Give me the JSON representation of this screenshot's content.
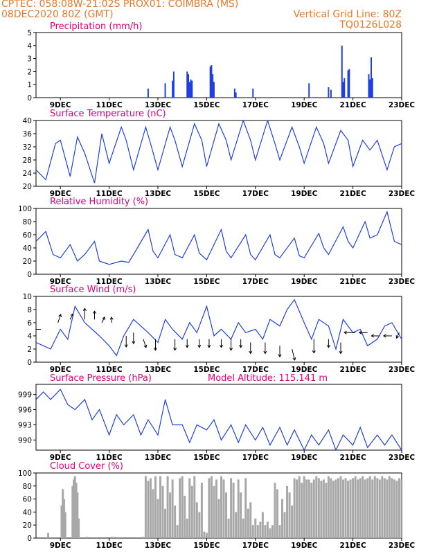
{
  "header": {
    "left_line1": "CPTEC:   058:08W-21:02S   PROX01: COIMBRA (MS)",
    "left_line2": "08DEC2020 80Z (GMT)",
    "right_line1": "Vertical Grid Line: 80Z",
    "right_line2": "TQ0126L028"
  },
  "colors": {
    "header": "#e8782a",
    "panel_title": "#e0007a",
    "series_line": "#1f3fe0",
    "cloud_bars": "#a8a8a8",
    "wind_arrows": "#000000"
  },
  "x_axis": {
    "unit": "day of month (Dec 2020)",
    "range": [
      8,
      23
    ],
    "ticks": [
      9,
      11,
      13,
      15,
      17,
      19,
      21,
      23
    ],
    "tick_labels": [
      "9DEC",
      "11DEC",
      "13DEC",
      "15DEC",
      "17DEC",
      "19DEC",
      "21DEC",
      "23DEC"
    ]
  },
  "chart_data": [
    {
      "type": "bar",
      "title": "Precipitation (mm/h)",
      "ylim": [
        0,
        5
      ],
      "yticks": [
        0,
        1,
        2,
        3,
        4,
        5
      ],
      "x": [
        12.6,
        13.3,
        13.6,
        13.65,
        14.2,
        14.25,
        14.3,
        14.35,
        14.4,
        15.15,
        15.2,
        15.25,
        15.3,
        16.15,
        16.2,
        16.9,
        19.2,
        20.0,
        20.1,
        20.55,
        20.6,
        20.65,
        20.8,
        20.85,
        21.65,
        21.7,
        21.75,
        21.8
      ],
      "values": [
        0.7,
        1.1,
        1.3,
        2.0,
        2.0,
        1.8,
        1.2,
        1.4,
        1.3,
        2.4,
        2.5,
        1.8,
        1.2,
        0.7,
        0.4,
        0.7,
        1.1,
        0.8,
        0.6,
        4.0,
        1.2,
        1.5,
        2.1,
        2.2,
        1.8,
        1.4,
        3.1,
        1.5
      ],
      "color": "#1f3fe0"
    },
    {
      "type": "line",
      "title": "Surface Temperature (nC)",
      "ylim": [
        20,
        40
      ],
      "yticks": [
        20,
        24,
        28,
        32,
        36,
        40
      ],
      "x": [
        8.0,
        8.4,
        8.8,
        9.0,
        9.4,
        9.7,
        10.0,
        10.4,
        10.7,
        11.0,
        11.5,
        11.7,
        12.0,
        12.5,
        12.7,
        13.0,
        13.5,
        13.7,
        14.0,
        14.5,
        14.8,
        15.0,
        15.5,
        15.8,
        16.0,
        16.5,
        16.8,
        17.0,
        17.5,
        17.8,
        18.0,
        18.5,
        18.8,
        19.0,
        19.5,
        19.8,
        20.0,
        20.5,
        20.8,
        21.0,
        21.4,
        21.7,
        22.0,
        22.4,
        22.7,
        23.0
      ],
      "y": [
        25,
        22,
        33,
        34,
        23,
        35,
        30,
        21,
        36,
        27,
        38,
        34,
        25,
        38,
        33,
        25,
        38,
        34,
        26,
        39,
        34,
        26,
        39,
        34,
        28,
        40,
        34,
        28,
        40,
        33,
        28,
        38,
        32,
        27,
        38,
        33,
        27,
        37,
        34,
        26,
        34,
        31,
        34,
        25,
        32,
        33
      ],
      "color": "#1f3fe0"
    },
    {
      "type": "line",
      "title": "Relative Humidity (%)",
      "ylim": [
        0,
        100
      ],
      "yticks": [
        0,
        20,
        40,
        60,
        80,
        100
      ],
      "x": [
        8.0,
        8.4,
        8.7,
        9.0,
        9.4,
        9.7,
        10.0,
        10.4,
        10.6,
        11.0,
        11.5,
        11.8,
        12.0,
        12.6,
        12.8,
        13.0,
        13.5,
        13.7,
        14.0,
        14.5,
        14.7,
        15.0,
        15.6,
        15.8,
        16.0,
        16.6,
        16.8,
        17.0,
        17.6,
        17.8,
        18.0,
        18.6,
        18.8,
        19.0,
        19.6,
        19.8,
        20.0,
        20.6,
        20.8,
        21.0,
        21.5,
        21.7,
        22.0,
        22.4,
        22.7,
        23.0
      ],
      "y": [
        50,
        65,
        30,
        25,
        45,
        20,
        30,
        50,
        20,
        15,
        20,
        18,
        30,
        68,
        35,
        25,
        60,
        30,
        25,
        60,
        32,
        22,
        68,
        35,
        25,
        60,
        30,
        22,
        60,
        30,
        25,
        55,
        28,
        25,
        62,
        40,
        30,
        72,
        50,
        40,
        80,
        55,
        60,
        95,
        50,
        45
      ],
      "color": "#1f3fe0"
    },
    {
      "type": "line",
      "title": "Surface Wind (m/s)",
      "ylim": [
        0,
        10
      ],
      "yticks": [
        0,
        2,
        4,
        6,
        8,
        10
      ],
      "x": [
        8.0,
        8.3,
        8.6,
        9.0,
        9.3,
        9.6,
        10.0,
        10.3,
        10.6,
        11.0,
        11.3,
        11.6,
        12.0,
        12.3,
        12.6,
        13.0,
        13.3,
        13.6,
        14.0,
        14.3,
        14.6,
        15.0,
        15.3,
        15.6,
        16.0,
        16.3,
        16.6,
        17.0,
        17.3,
        17.6,
        18.0,
        18.3,
        18.6,
        19.0,
        19.3,
        19.6,
        20.0,
        20.3,
        20.6,
        21.0,
        21.3,
        21.6,
        22.0,
        22.3,
        22.6,
        23.0
      ],
      "y": [
        3.0,
        2.5,
        2.0,
        5.0,
        3.5,
        8.5,
        6.0,
        5.0,
        4.0,
        2.5,
        1.0,
        4.0,
        6.5,
        5.5,
        4.5,
        3.0,
        6.5,
        5.0,
        3.5,
        6.0,
        4.5,
        8.5,
        4.0,
        5.0,
        3.5,
        6.0,
        4.5,
        5.0,
        3.5,
        6.5,
        5.5,
        8.0,
        9.5,
        6.0,
        3.5,
        6.5,
        5.5,
        2.0,
        6.5,
        4.5,
        5.0,
        2.5,
        3.5,
        5.5,
        6.0,
        3.5
      ],
      "color": "#1f3fe0",
      "wind_vectors": [
        {
          "x": 8.2,
          "y": 5.0,
          "u": -3,
          "v": 0
        },
        {
          "x": 8.9,
          "y": 6.0,
          "u": 1,
          "v": 3
        },
        {
          "x": 9.4,
          "y": 6.5,
          "u": 1,
          "v": 2
        },
        {
          "x": 10.0,
          "y": 6.5,
          "u": 0,
          "v": 4
        },
        {
          "x": 10.4,
          "y": 6.5,
          "u": 0,
          "v": 3
        },
        {
          "x": 10.7,
          "y": 6.0,
          "u": 1,
          "v": 2
        },
        {
          "x": 11.1,
          "y": 6.0,
          "u": 0,
          "v": 2
        },
        {
          "x": 11.7,
          "y": 4.0,
          "u": 0,
          "v": -4
        },
        {
          "x": 12.0,
          "y": 4.5,
          "u": 0,
          "v": -4
        },
        {
          "x": 12.4,
          "y": 3.5,
          "u": 1,
          "v": -3
        },
        {
          "x": 12.9,
          "y": 3.5,
          "u": 0,
          "v": -4
        },
        {
          "x": 13.7,
          "y": 3.5,
          "u": 0,
          "v": -4
        },
        {
          "x": 14.2,
          "y": 3.5,
          "u": 0,
          "v": -3
        },
        {
          "x": 14.7,
          "y": 3.5,
          "u": 0,
          "v": -3
        },
        {
          "x": 15.1,
          "y": 3.5,
          "u": 0,
          "v": -3
        },
        {
          "x": 15.6,
          "y": 3.5,
          "u": 0,
          "v": -3
        },
        {
          "x": 16.0,
          "y": 3.5,
          "u": 0,
          "v": -4
        },
        {
          "x": 16.4,
          "y": 3.5,
          "u": 0,
          "v": -3
        },
        {
          "x": 16.8,
          "y": 3.0,
          "u": 0,
          "v": -4
        },
        {
          "x": 17.4,
          "y": 3.0,
          "u": 0,
          "v": -4
        },
        {
          "x": 18.0,
          "y": 2.5,
          "u": 0,
          "v": -4
        },
        {
          "x": 18.5,
          "y": 2.0,
          "u": 1,
          "v": -4
        },
        {
          "x": 19.4,
          "y": 3.5,
          "u": 0,
          "v": -5
        },
        {
          "x": 20.0,
          "y": 3.5,
          "u": 0,
          "v": -3
        },
        {
          "x": 20.5,
          "y": 3.0,
          "u": 0,
          "v": -4
        },
        {
          "x": 21.1,
          "y": 4.5,
          "u": -4,
          "v": 0
        },
        {
          "x": 21.6,
          "y": 4.5,
          "u": -3,
          "v": 0
        },
        {
          "x": 22.1,
          "y": 4.0,
          "u": -3,
          "v": 0
        },
        {
          "x": 22.6,
          "y": 4.0,
          "u": -3,
          "v": 0
        },
        {
          "x": 22.9,
          "y": 4.5,
          "u": -1,
          "v": -2
        }
      ]
    },
    {
      "type": "line",
      "title": "Surface Pressure (hPa)",
      "annotation": "Model Altitude: 115.141 m",
      "ylim": [
        988,
        1001
      ],
      "yticks": [
        990,
        993,
        996,
        999
      ],
      "x": [
        8.0,
        8.3,
        8.6,
        9.0,
        9.3,
        9.6,
        10.0,
        10.3,
        10.6,
        11.0,
        11.3,
        11.6,
        12.0,
        12.3,
        12.6,
        13.0,
        13.3,
        13.6,
        14.0,
        14.3,
        14.6,
        15.0,
        15.3,
        15.6,
        16.0,
        16.3,
        16.6,
        17.0,
        17.3,
        17.6,
        18.0,
        18.3,
        18.6,
        19.0,
        19.3,
        19.6,
        20.0,
        20.3,
        20.6,
        21.0,
        21.3,
        21.6,
        22.0,
        22.3,
        22.6,
        23.0
      ],
      "y": [
        998,
        999.5,
        998,
        1000,
        997,
        996,
        998,
        994,
        996,
        991,
        995,
        993,
        995,
        991,
        994,
        991,
        998,
        993,
        993,
        989.5,
        993,
        992,
        994,
        990,
        993,
        989.5,
        993,
        990,
        992.5,
        989,
        992.5,
        989,
        992,
        988,
        991,
        989,
        992,
        988,
        991,
        989,
        992.5,
        988.5,
        991,
        989,
        991,
        988
      ],
      "color": "#1f3fe0"
    },
    {
      "type": "bar",
      "title": "Cloud Cover (%)",
      "ylim": [
        0,
        100
      ],
      "yticks": [
        0,
        20,
        40,
        60,
        80,
        100
      ],
      "x": [
        8.5,
        9.05,
        9.1,
        9.15,
        9.2,
        9.5,
        9.55,
        9.6,
        9.65,
        9.7,
        9.75,
        10.1,
        11.1,
        11.2,
        12.4,
        12.5,
        12.6,
        12.7,
        12.8,
        12.9,
        13.0,
        13.1,
        13.2,
        13.3,
        13.4,
        13.5,
        13.6,
        13.7,
        13.8,
        13.9,
        14.0,
        14.1,
        14.2,
        14.3,
        14.4,
        14.5,
        14.6,
        14.7,
        14.8,
        14.9,
        15.0,
        15.1,
        15.2,
        15.3,
        15.4,
        15.5,
        15.6,
        15.7,
        15.8,
        15.9,
        16.0,
        16.1,
        16.2,
        16.3,
        16.4,
        16.5,
        16.6,
        16.7,
        16.8,
        16.9,
        17.0,
        17.1,
        17.2,
        17.3,
        17.4,
        17.5,
        17.6,
        17.7,
        17.8,
        17.9,
        18.0,
        18.1,
        18.2,
        18.3,
        18.4,
        18.5,
        18.6,
        18.7,
        18.8,
        18.9,
        19.0,
        19.1,
        19.2,
        19.3,
        19.4,
        19.5,
        19.6,
        19.7,
        19.8,
        19.9,
        20.0,
        20.1,
        20.2,
        20.3,
        20.4,
        20.5,
        20.6,
        20.7,
        20.8,
        20.9,
        21.0,
        21.1,
        21.2,
        21.3,
        21.4,
        21.5,
        21.6,
        21.7,
        21.8,
        21.9,
        22.0,
        22.1,
        22.2,
        22.3,
        22.4,
        22.5,
        22.6,
        22.7,
        22.8,
        22.9,
        23.0
      ],
      "values": [
        8,
        50,
        75,
        60,
        40,
        80,
        90,
        95,
        85,
        70,
        30,
        2,
        2,
        2,
        2,
        95,
        88,
        92,
        75,
        95,
        60,
        95,
        80,
        45,
        95,
        70,
        90,
        50,
        20,
        92,
        95,
        65,
        30,
        92,
        80,
        95,
        55,
        40,
        85,
        10,
        8,
        92,
        95,
        80,
        90,
        60,
        95,
        90,
        70,
        30,
        92,
        85,
        40,
        90,
        70,
        30,
        92,
        45,
        55,
        20,
        30,
        20,
        25,
        40,
        20,
        25,
        15,
        20,
        85,
        75,
        20,
        60,
        40,
        80,
        70,
        50,
        92,
        90,
        95,
        85,
        95,
        90,
        90,
        85,
        90,
        95,
        92,
        88,
        90,
        85,
        95,
        92,
        88,
        90,
        92,
        95,
        90,
        92,
        88,
        90,
        92,
        95,
        90,
        92,
        95,
        90,
        92,
        95,
        90,
        95,
        92,
        90,
        95,
        92,
        90,
        95,
        92,
        90,
        88,
        92,
        90
      ],
      "color": "#a8a8a8"
    }
  ]
}
